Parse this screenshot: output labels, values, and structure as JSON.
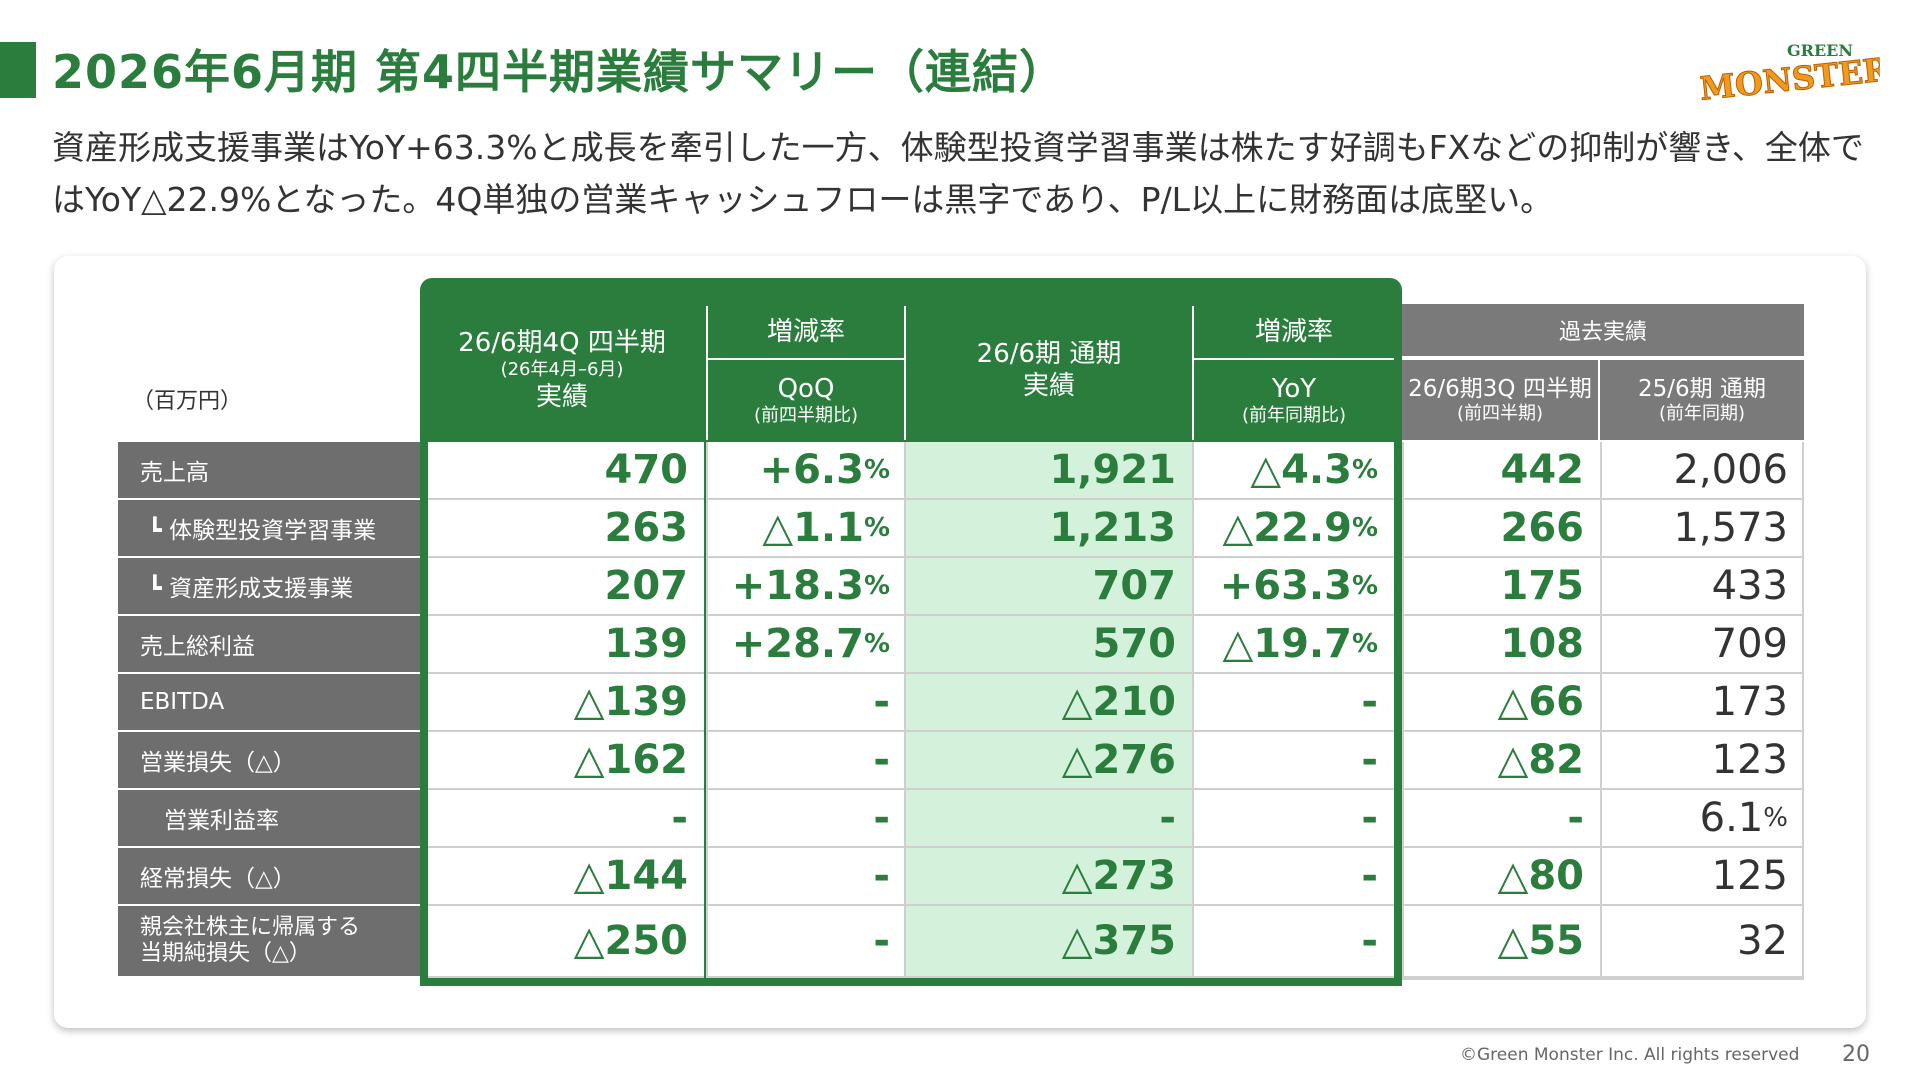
{
  "title": "2026年6月期 第4四半期業績サマリー（連結）",
  "logo": {
    "top": "GREEN",
    "main": "MONSTER"
  },
  "lead_text": "資産形成支援事業はYoY+63.3%と成長を牽引した一方、体験型投資学習事業は株たす好調もFXなどの抑制が響き、全体ではYoY△22.9%となった。4Q単独の営業キャッシュフローは黒字であり、P/L以上に財務面は底堅い。",
  "table": {
    "unit": "（百万円）",
    "headers": {
      "q4": {
        "line1": "26/6期4Q 四半期",
        "line2": "(26年4月–6月)",
        "line3": "実績"
      },
      "qoq_group": "増減率",
      "qoq": {
        "line1": "QoQ",
        "line2": "(前四半期比)"
      },
      "fy": {
        "line1": "26/6期 通期",
        "line2": "実績"
      },
      "yoy_group": "増減率",
      "yoy": {
        "line1": "YoY",
        "line2": "(前年同期比)"
      },
      "past_group": "過去実績",
      "q3": {
        "line1": "26/6期3Q 四半期",
        "line2": "(前四半期)"
      },
      "prev_fy": {
        "line1": "25/6期 通期",
        "line2": "(前年同期)"
      }
    },
    "rows": [
      {
        "label": "売上高",
        "q4": "470",
        "qoq": "+6.3",
        "qoq_unit": "%",
        "fy": "1,921",
        "yoy": "△4.3",
        "yoy_unit": "%",
        "q3": "442",
        "prev": "2,006",
        "prev_unit": ""
      },
      {
        "label": "┗ 体験型投資学習事業",
        "q4": "263",
        "qoq": "△1.1",
        "qoq_unit": "%",
        "fy": "1,213",
        "yoy": "△22.9",
        "yoy_unit": "%",
        "q3": "266",
        "prev": "1,573",
        "prev_unit": ""
      },
      {
        "label": "┗ 資産形成支援事業",
        "q4": "207",
        "qoq": "+18.3",
        "qoq_unit": "%",
        "fy": "707",
        "yoy": "+63.3",
        "yoy_unit": "%",
        "q3": "175",
        "prev": "433",
        "prev_unit": ""
      },
      {
        "label": "売上総利益",
        "q4": "139",
        "qoq": "+28.7",
        "qoq_unit": "%",
        "fy": "570",
        "yoy": "△19.7",
        "yoy_unit": "%",
        "q3": "108",
        "prev": "709",
        "prev_unit": ""
      },
      {
        "label": "EBITDA",
        "q4": "△139",
        "qoq": "-",
        "qoq_unit": "",
        "fy": "△210",
        "yoy": "-",
        "yoy_unit": "",
        "q3": "△66",
        "prev": "173",
        "prev_unit": ""
      },
      {
        "label": "営業損失（△）",
        "q4": "△162",
        "qoq": "-",
        "qoq_unit": "",
        "fy": "△276",
        "yoy": "-",
        "yoy_unit": "",
        "q3": "△82",
        "prev": "123",
        "prev_unit": ""
      },
      {
        "label": "営業利益率",
        "q4": "-",
        "qoq": "-",
        "qoq_unit": "",
        "fy": "-",
        "yoy": "-",
        "yoy_unit": "",
        "q3": "-",
        "prev": "6.1",
        "prev_unit": "%"
      },
      {
        "label": "経常損失（△）",
        "q4": "△144",
        "qoq": "-",
        "qoq_unit": "",
        "fy": "△273",
        "yoy": "-",
        "yoy_unit": "",
        "q3": "△80",
        "prev": "125",
        "prev_unit": ""
      },
      {
        "label": "親会社株主に帰属する\n当期純損失（△）",
        "q4": "△250",
        "qoq": "-",
        "qoq_unit": "",
        "fy": "△375",
        "yoy": "-",
        "yoy_unit": "",
        "q3": "△55",
        "prev": "32",
        "prev_unit": ""
      }
    ]
  },
  "footer": "©Green Monster Inc. All rights reserved",
  "page_number": "20"
}
